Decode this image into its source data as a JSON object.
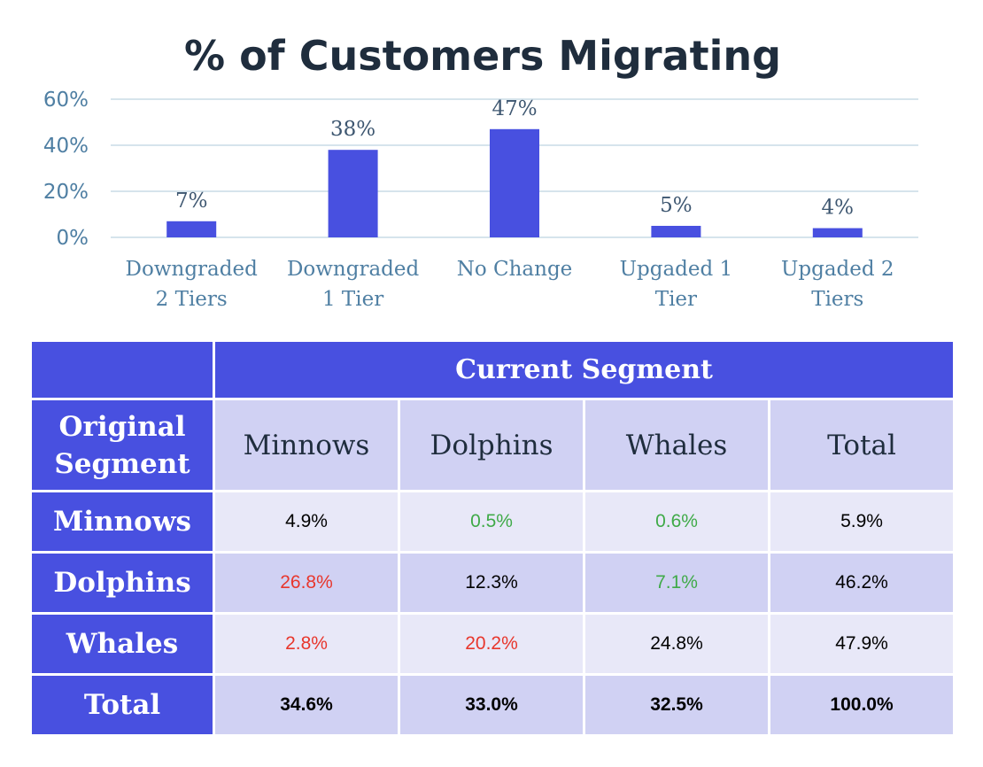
{
  "chart_data": {
    "type": "bar",
    "title": "% of Customers Migrating",
    "categories": [
      [
        "Downgraded",
        "2 Tiers"
      ],
      [
        "Downgraded",
        "1 Tier"
      ],
      [
        "No Change"
      ],
      [
        "Upgaded 1",
        "Tier"
      ],
      [
        "Upgaded 2",
        "Tiers"
      ]
    ],
    "values": [
      7,
      38,
      47,
      5,
      4
    ],
    "data_labels": [
      "7%",
      "38%",
      "47%",
      "5%",
      "4%"
    ],
    "ylim": [
      0,
      60
    ],
    "yticks": [
      "0%",
      "20%",
      "40%",
      "60%"
    ],
    "xlabel": "",
    "ylabel": "",
    "grid": true,
    "colors": {
      "bar": "#4850e0",
      "grid": "#c9dbe6",
      "axis_text": "#4f7fa3"
    }
  },
  "table": {
    "header": "Current Segment",
    "corner_label": [
      "Original",
      "Segment"
    ],
    "columns": [
      "Minnows",
      "Dolphins",
      "Whales",
      "Total"
    ],
    "rows": [
      {
        "label": "Minnows",
        "cells": [
          {
            "value": "4.9%",
            "color": "#000000"
          },
          {
            "value": "0.5%",
            "color": "#3faa48"
          },
          {
            "value": "0.6%",
            "color": "#3faa48"
          },
          {
            "value": "5.9%",
            "color": "#000000"
          }
        ]
      },
      {
        "label": "Dolphins",
        "cells": [
          {
            "value": "26.8%",
            "color": "#e8362c"
          },
          {
            "value": "12.3%",
            "color": "#000000"
          },
          {
            "value": "7.1%",
            "color": "#3faa48"
          },
          {
            "value": "46.2%",
            "color": "#000000"
          }
        ]
      },
      {
        "label": "Whales",
        "cells": [
          {
            "value": "2.8%",
            "color": "#e8362c"
          },
          {
            "value": "20.2%",
            "color": "#e8362c"
          },
          {
            "value": "24.8%",
            "color": "#000000"
          },
          {
            "value": "47.9%",
            "color": "#000000"
          }
        ]
      },
      {
        "label": "Total",
        "cells": [
          {
            "value": "34.6%",
            "color": "#000000"
          },
          {
            "value": "33.0%",
            "color": "#000000"
          },
          {
            "value": "32.5%",
            "color": "#000000"
          },
          {
            "value": "100.0%",
            "color": "#000000"
          }
        ]
      }
    ]
  }
}
